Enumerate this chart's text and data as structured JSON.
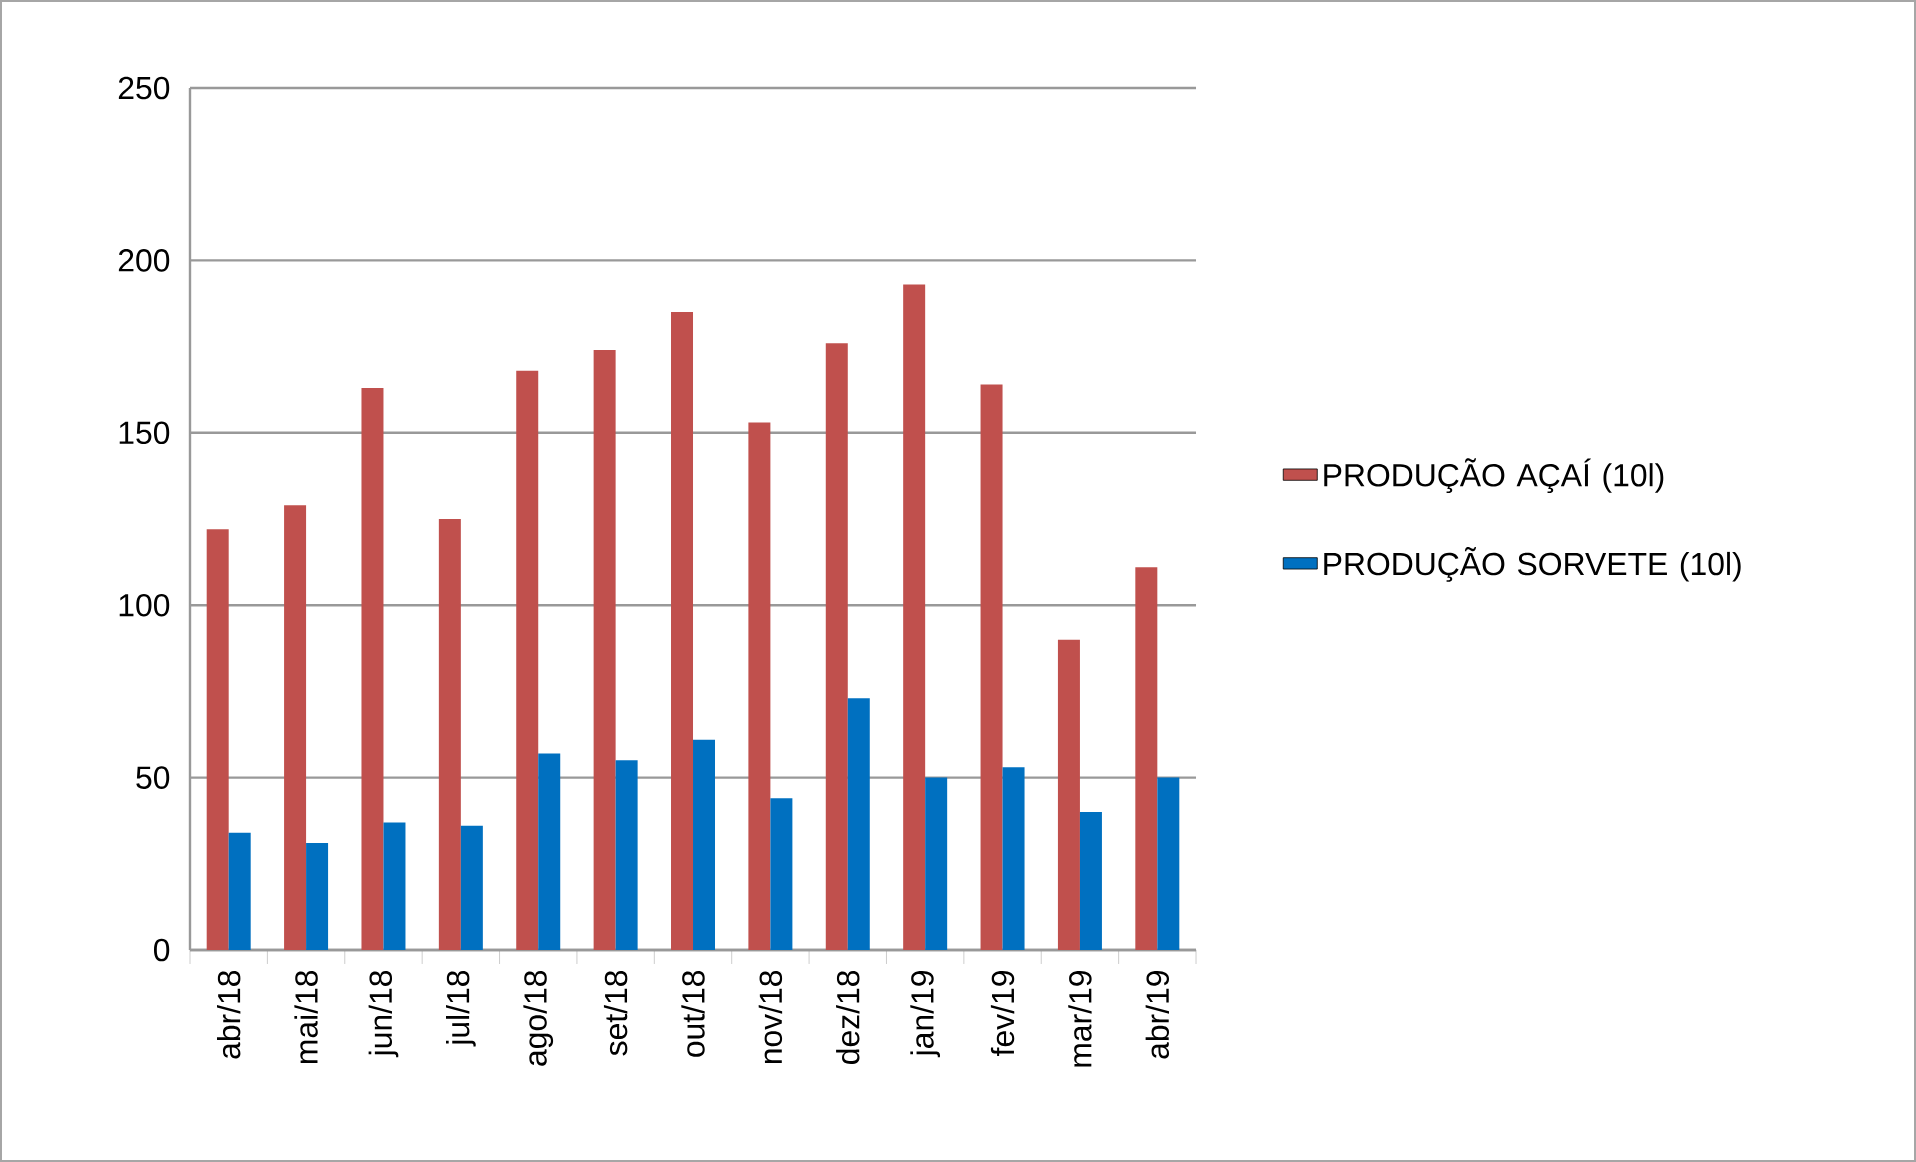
{
  "chart_data": {
    "type": "bar",
    "categories": [
      "abr/18",
      "mai/18",
      "jun/18",
      "jul/18",
      "ago/18",
      "set/18",
      "out/18",
      "nov/18",
      "dez/18",
      "jan/19",
      "fev/19",
      "mar/19",
      "abr/19"
    ],
    "series": [
      {
        "name": "PRODUÇÃO AÇAÍ (10l)",
        "color": "#c0504d",
        "values": [
          122,
          129,
          163,
          125,
          168,
          174,
          185,
          153,
          176,
          193,
          164,
          90,
          111
        ]
      },
      {
        "name": "PRODUÇÃO SORVETE (10l)",
        "color": "#0070c0",
        "values": [
          34,
          31,
          37,
          36,
          57,
          55,
          61,
          44,
          73,
          50,
          53,
          40,
          50
        ]
      }
    ],
    "ylim": [
      0,
      250
    ],
    "yticks": [
      0,
      50,
      100,
      150,
      200,
      250
    ],
    "grid": "y",
    "legend": "right"
  }
}
